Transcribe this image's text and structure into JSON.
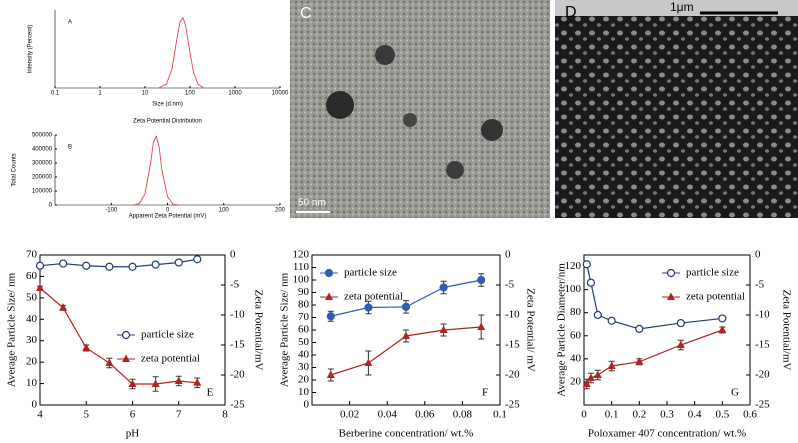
{
  "chart_data": [
    {
      "type": "line",
      "panel": "A",
      "xscale": "log",
      "xlim": [
        0.1,
        10000
      ],
      "xticks": [
        0.1,
        1,
        10,
        100,
        1000,
        10000
      ],
      "ylim": [
        0,
        20
      ],
      "xlabel": "Size (d.nm)",
      "ylabel": "Intensity (Percent)",
      "color": "#e8404a",
      "x": [
        20,
        30,
        40,
        50,
        60,
        70,
        80,
        100,
        120,
        150,
        200
      ],
      "values": [
        0,
        1,
        5,
        12,
        17,
        18,
        16,
        9,
        4,
        1,
        0
      ]
    },
    {
      "type": "line",
      "panel": "B",
      "title": "Zeta Potential Distribution",
      "xlim": [
        -200,
        200
      ],
      "xticks": [
        -100,
        0,
        100,
        200
      ],
      "ylim": [
        0,
        500000
      ],
      "yticks": [
        0,
        100000,
        200000,
        300000,
        400000,
        500000
      ],
      "xlabel": "Apparent Zeta Potential (mV)",
      "ylabel": "Total Counts",
      "color": "#e8404a",
      "x": [
        -60,
        -50,
        -40,
        -30,
        -25,
        -20,
        -15,
        -10,
        0,
        10,
        20
      ],
      "values": [
        0,
        10000,
        80000,
        300000,
        450000,
        490000,
        420000,
        250000,
        60000,
        5000,
        0
      ]
    },
    {
      "type": "line",
      "panel": "E",
      "xlim": [
        4,
        8
      ],
      "xticks": [
        4,
        5,
        6,
        7,
        8
      ],
      "ylim": [
        0,
        70
      ],
      "yticks": [
        0,
        10,
        20,
        30,
        40,
        50,
        60,
        70
      ],
      "y2lim": [
        -25,
        0
      ],
      "y2ticks": [
        -25,
        -20,
        -15,
        -10,
        -5,
        0
      ],
      "xlabel": "pH",
      "ylabel": "Average Particle Size/ nm",
      "y2label": "Zeta Potential/mV",
      "legend": "right",
      "x": [
        4,
        4.5,
        5,
        5.5,
        6,
        6.5,
        7,
        7.4
      ],
      "series": [
        {
          "name": "particle size",
          "color": "#1f3b73",
          "marker": "circle-open",
          "values": [
            65,
            66,
            65,
            64.5,
            64.5,
            65.5,
            66.5,
            68
          ]
        },
        {
          "name": "zeta potential",
          "color": "#b22222",
          "marker": "triangle",
          "axis": "y2",
          "values": [
            -5.5,
            -8.8,
            -15.5,
            -18,
            -21.5,
            -21.5,
            -21,
            -21.3
          ],
          "errors": [
            0.3,
            0.4,
            0.5,
            0.8,
            0.8,
            1.2,
            0.8,
            0.8
          ]
        }
      ]
    },
    {
      "type": "line",
      "panel": "F",
      "xlim": [
        0,
        0.1
      ],
      "xticks": [
        0.02,
        0.04,
        0.06,
        0.08,
        0.1
      ],
      "ylim": [
        0,
        120
      ],
      "yticks": [
        0,
        10,
        20,
        30,
        40,
        50,
        60,
        70,
        80,
        90,
        100,
        110,
        120
      ],
      "y2lim": [
        -25,
        0
      ],
      "y2ticks": [
        -25,
        -20,
        -15,
        -10,
        -5,
        0
      ],
      "xlabel": "Berberine concentration/ wt.%",
      "ylabel": "Average Particle Size/ nm",
      "y2label": "Zeta Potential/ mV",
      "legend": "upper left",
      "x": [
        0.01,
        0.03,
        0.05,
        0.07,
        0.09
      ],
      "series": [
        {
          "name": "particle size",
          "color": "#2e5db3",
          "marker": "circle",
          "values": [
            71,
            78,
            78.5,
            94,
            100
          ],
          "errors": [
            4,
            5,
            5,
            5,
            5
          ]
        },
        {
          "name": "zeta potential",
          "color": "#b22222",
          "marker": "triangle",
          "axis": "y2",
          "values": [
            -20,
            -18,
            -13.5,
            -12.5,
            -12
          ],
          "errors": [
            1,
            2,
            1,
            1,
            2
          ]
        }
      ]
    },
    {
      "type": "line",
      "panel": "G",
      "xlim": [
        0,
        0.6
      ],
      "xticks": [
        0,
        0.1,
        0.2,
        0.3,
        0.4,
        0.5,
        0.6
      ],
      "ylim": [
        0,
        130
      ],
      "yticks": [
        20,
        40,
        60,
        80,
        100,
        120
      ],
      "y2lim": [
        -25,
        0
      ],
      "y2ticks": [
        -25,
        -20,
        -15,
        -10,
        -5,
        0
      ],
      "xlabel": "Poloxamer 407 concentration/ wt.%",
      "ylabel": "Average Particle Diameter/nm",
      "y2label": "Zeta Potential/mV",
      "legend": "upper right",
      "x": [
        0.01,
        0.025,
        0.05,
        0.1,
        0.2,
        0.35,
        0.5
      ],
      "series": [
        {
          "name": "particle size",
          "color": "#1f3b73",
          "marker": "circle-open",
          "values": [
            122,
            106,
            78,
            73,
            66,
            71,
            75
          ]
        },
        {
          "name": "zeta potential",
          "color": "#b22222",
          "marker": "triangle",
          "axis": "y2",
          "values": [
            -21.5,
            -20.5,
            -20,
            -18.5,
            -17.8,
            -15,
            -12.5
          ],
          "errors": [
            0.8,
            0.8,
            0.8,
            0.8,
            0.5,
            0.8,
            0.5
          ]
        }
      ]
    }
  ],
  "images": [
    {
      "label": "C",
      "scale": "50 nm"
    },
    {
      "label": "D",
      "scale": "1μm"
    }
  ]
}
